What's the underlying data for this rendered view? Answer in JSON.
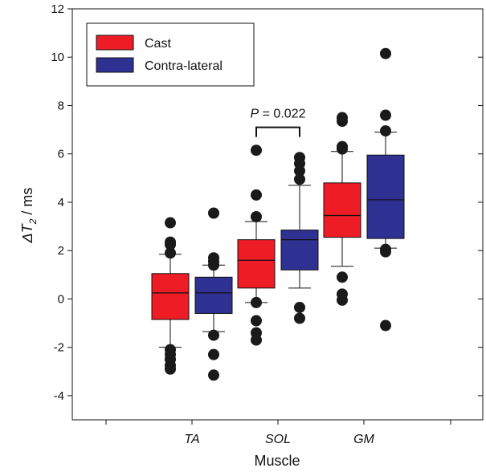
{
  "chart_data": {
    "type": "box",
    "xlabel": "Muscle",
    "ylabel_prefix": "ΔT",
    "ylabel_sub": "2",
    "ylabel_suffix": " / ms",
    "ylim": [
      -5,
      12
    ],
    "yticks": [
      -4,
      -2,
      0,
      2,
      4,
      6,
      8,
      10,
      12
    ],
    "categories": [
      "TA",
      "SOL",
      "GM"
    ],
    "legend": {
      "placement": "top-left"
    },
    "colors": {
      "Cast": "#ee1c25",
      "Contra-lateral": "#2e3192"
    },
    "series": [
      {
        "name": "Cast",
        "boxes": [
          {
            "q1": -0.85,
            "median": 0.25,
            "q3": 1.05,
            "whisker_low": -2.0,
            "whisker_high": 1.85,
            "outliers": [
              3.15,
              2.35,
              2.25,
              1.9,
              -2.1,
              -2.3,
              -2.5,
              -2.75,
              -2.9
            ]
          },
          {
            "q1": 0.45,
            "median": 1.6,
            "q3": 2.45,
            "whisker_low": -0.15,
            "whisker_high": 3.2,
            "outliers": [
              6.15,
              4.3,
              3.4,
              -0.15,
              -0.9,
              -1.4,
              -1.7
            ]
          },
          {
            "q1": 2.55,
            "median": 3.45,
            "q3": 4.8,
            "whisker_low": 1.35,
            "whisker_high": 6.1,
            "outliers": [
              7.5,
              7.35,
              6.3,
              6.2,
              0.9,
              0.2,
              -0.05
            ]
          }
        ]
      },
      {
        "name": "Contra-lateral",
        "boxes": [
          {
            "q1": -0.6,
            "median": 0.25,
            "q3": 0.9,
            "whisker_low": -1.35,
            "whisker_high": 1.4,
            "outliers": [
              3.55,
              1.7,
              1.55,
              1.4,
              -1.5,
              -2.3,
              -3.15
            ]
          },
          {
            "q1": 1.2,
            "median": 2.45,
            "q3": 2.85,
            "whisker_low": 0.45,
            "whisker_high": 4.7,
            "outliers": [
              5.85,
              5.6,
              5.3,
              4.95,
              -0.35,
              -0.8
            ]
          },
          {
            "q1": 2.5,
            "median": 4.1,
            "q3": 5.95,
            "whisker_low": 2.1,
            "whisker_high": 6.9,
            "outliers": [
              10.15,
              7.6,
              6.95,
              2.05,
              1.95,
              -1.1
            ]
          }
        ]
      }
    ],
    "annotations": [
      {
        "text_prefix": "P",
        "text_suffix": " = 0.022",
        "category": "SOL",
        "y": 7.1
      }
    ]
  }
}
